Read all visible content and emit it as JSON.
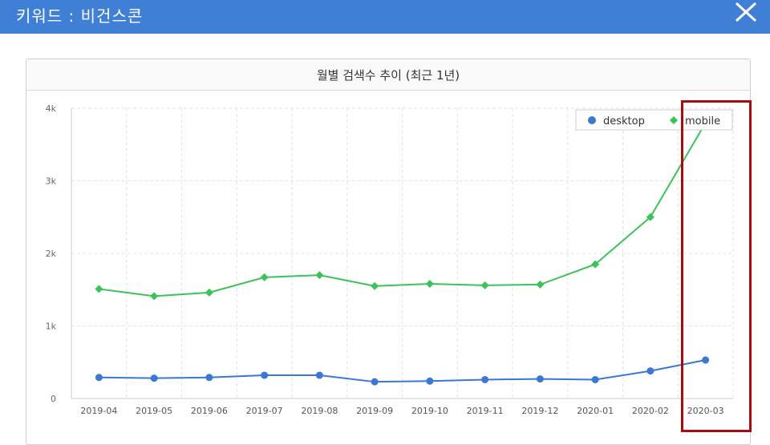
{
  "header": {
    "title": "키워드 : 비건스콘",
    "close_icon": "close-icon"
  },
  "panel": {
    "title": "월별 검색수 추이 (최근 1년)"
  },
  "colors": {
    "header_bg": "#3f7fd6",
    "desktop": "#3a78d4",
    "mobile": "#3cc25a",
    "highlight": "#a80d0d"
  },
  "chart_data": {
    "type": "line",
    "title": "월별 검색수 추이 (최근 1년)",
    "xlabel": "",
    "ylabel": "",
    "categories": [
      "2019-04",
      "2019-05",
      "2019-06",
      "2019-07",
      "2019-08",
      "2019-09",
      "2019-10",
      "2019-11",
      "2019-12",
      "2020-01",
      "2020-02",
      "2020-03"
    ],
    "ylim": [
      0,
      4000
    ],
    "yticks": [
      0,
      1000,
      2000,
      3000,
      4000
    ],
    "ytick_labels": [
      "0",
      "1k",
      "2k",
      "3k",
      "4k"
    ],
    "grid": true,
    "legend_position": "top-right",
    "series": [
      {
        "name": "desktop",
        "marker": "circle",
        "values": [
          290,
          280,
          290,
          320,
          320,
          230,
          240,
          260,
          270,
          260,
          380,
          530
        ]
      },
      {
        "name": "mobile",
        "marker": "diamond",
        "values": [
          1510,
          1410,
          1460,
          1670,
          1700,
          1550,
          1580,
          1560,
          1570,
          1850,
          2500,
          3800
        ]
      }
    ]
  }
}
